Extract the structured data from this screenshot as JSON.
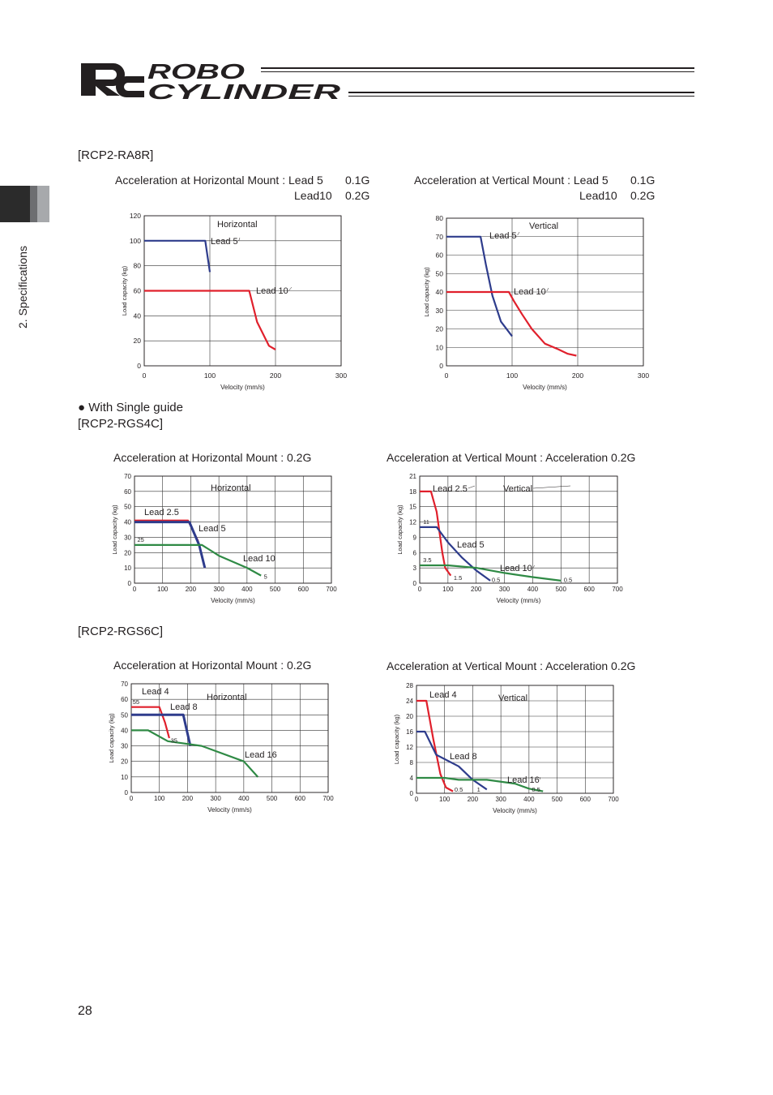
{
  "header": {
    "logo_mark": "RC",
    "logo_line1": "ROBO",
    "logo_line2": "CYLINDER"
  },
  "side_tab": {
    "label": "2. Specifications"
  },
  "sections": {
    "ra8r": "[RCP2-RA8R]",
    "single_guide": "● With Single guide",
    "rgs4c": "[RCP2-RGS4C]",
    "rgs6c": "[RCP2-RGS6C]"
  },
  "accel": {
    "ra8r_h_line1": "Acceleration at Horizontal Mount : Lead 5",
    "ra8r_h_line1_val": "0.1G",
    "ra8r_h_line2": "Lead10",
    "ra8r_h_line2_val": "0.2G",
    "ra8r_v_line1": "Acceleration at Vertical Mount : Lead 5",
    "ra8r_v_line1_val": "0.1G",
    "ra8r_v_line2": "Lead10",
    "ra8r_v_line2_val": "0.2G",
    "rgs4c_h": "Acceleration at Horizontal Mount : 0.2G",
    "rgs4c_v": "Acceleration at Vertical Mount : Acceleration 0.2G",
    "rgs6c_h": "Acceleration at Horizontal Mount : 0.2G",
    "rgs6c_v": "Acceleration at Vertical Mount : Acceleration 0.2G"
  },
  "page_number": "28",
  "colors": {
    "blue": "#2e3c8c",
    "red": "#e0202c",
    "green": "#2f8a45",
    "grid": "#333333"
  },
  "chart_data": [
    {
      "id": "ra8r-h",
      "type": "line",
      "title": "Horizontal",
      "xlabel": "Velocity (mm/s)",
      "ylabel": "Load capacity (kg)",
      "xlim": [
        0,
        300
      ],
      "ylim": [
        0,
        120
      ],
      "xticks": [
        0,
        100,
        200,
        300
      ],
      "yticks": [
        0,
        20,
        40,
        60,
        80,
        100,
        120
      ],
      "series": [
        {
          "name": "Lead 5",
          "color": "blue",
          "points": [
            [
              0,
              100
            ],
            [
              93,
              100
            ],
            [
              100,
              75
            ]
          ]
        },
        {
          "name": "Lead 10",
          "color": "red",
          "points": [
            [
              0,
              60
            ],
            [
              160,
              60
            ],
            [
              172,
              35
            ],
            [
              190,
              16
            ],
            [
              200,
              13
            ]
          ]
        }
      ],
      "annotations": []
    },
    {
      "id": "ra8r-v",
      "type": "line",
      "title": "Vertical",
      "xlabel": "Velocity (mm/s)",
      "ylabel": "Load capacity (kg)",
      "xlim": [
        0,
        300
      ],
      "ylim": [
        0,
        80
      ],
      "xticks": [
        0,
        100,
        200,
        300
      ],
      "yticks": [
        0,
        10,
        20,
        30,
        40,
        50,
        60,
        70,
        80
      ],
      "series": [
        {
          "name": "Lead 5",
          "color": "blue",
          "points": [
            [
              0,
              70
            ],
            [
              52,
              70
            ],
            [
              60,
              55
            ],
            [
              70,
              38
            ],
            [
              83,
              24
            ],
            [
              100,
              16
            ]
          ]
        },
        {
          "name": "Lead 10",
          "color": "red",
          "points": [
            [
              0,
              40
            ],
            [
              95,
              40
            ],
            [
              103,
              35
            ],
            [
              115,
              28
            ],
            [
              130,
              20
            ],
            [
              150,
              12
            ],
            [
              170,
              9
            ],
            [
              185,
              6.5
            ],
            [
              198,
              5.5
            ]
          ]
        }
      ],
      "annotations": []
    },
    {
      "id": "rgs4c-h",
      "type": "line",
      "title": "Horizontal",
      "xlabel": "Velocity (mm/s)",
      "ylabel": "Load capacity (kg)",
      "xlim": [
        0,
        700
      ],
      "ylim": [
        0,
        70
      ],
      "xticks": [
        0,
        100,
        200,
        300,
        400,
        500,
        600,
        700
      ],
      "yticks": [
        0,
        10,
        20,
        30,
        40,
        50,
        60,
        70
      ],
      "series": [
        {
          "name": "Lead 2.5",
          "color": "red",
          "points": [
            [
              0,
              41
            ],
            [
              190,
              41
            ],
            [
              225,
              28
            ],
            [
              250,
              10
            ]
          ]
        },
        {
          "name": "Lead 5",
          "color": "blue",
          "points": [
            [
              0,
              40
            ],
            [
              195,
              40
            ],
            [
              230,
              25
            ],
            [
              250,
              10
            ]
          ]
        },
        {
          "name": "Lead 10",
          "color": "green",
          "points": [
            [
              0,
              25
            ],
            [
              240,
              25
            ],
            [
              300,
              18
            ],
            [
              400,
              10
            ],
            [
              450,
              5
            ]
          ]
        }
      ],
      "annotations": [
        {
          "text": "25",
          "x": 10,
          "y": 27
        },
        {
          "text": "5",
          "x": 460,
          "y": 3
        }
      ]
    },
    {
      "id": "rgs4c-v",
      "type": "line",
      "title": "Vertical",
      "xlabel": "Velocity (mm/s)",
      "ylabel": "Load capacity (kg)",
      "xlim": [
        0,
        700
      ],
      "ylim": [
        0,
        21
      ],
      "xticks": [
        0,
        100,
        200,
        300,
        400,
        500,
        600,
        700
      ],
      "yticks": [
        0,
        3,
        6,
        9,
        12,
        15,
        18,
        21
      ],
      "series": [
        {
          "name": "Lead 2.5",
          "color": "red",
          "points": [
            [
              0,
              18
            ],
            [
              40,
              18
            ],
            [
              60,
              14
            ],
            [
              80,
              6
            ],
            [
              90,
              3
            ],
            [
              110,
              1.5
            ]
          ]
        },
        {
          "name": "Lead 5",
          "color": "blue",
          "points": [
            [
              0,
              11
            ],
            [
              60,
              11
            ],
            [
              100,
              8
            ],
            [
              150,
              5
            ],
            [
              200,
              2.5
            ],
            [
              250,
              0.5
            ]
          ]
        },
        {
          "name": "Lead 10",
          "color": "green",
          "points": [
            [
              0,
              3.5
            ],
            [
              100,
              3.5
            ],
            [
              200,
              3
            ],
            [
              300,
              2
            ],
            [
              400,
              1.2
            ],
            [
              500,
              0.5
            ]
          ]
        }
      ],
      "annotations": [
        {
          "text": "11",
          "x": 12,
          "y": 11.6
        },
        {
          "text": "3.5",
          "x": 12,
          "y": 4.1
        },
        {
          "text": "1.5",
          "x": 120,
          "y": 0.6
        },
        {
          "text": "0.5",
          "x": 255,
          "y": 0.2
        },
        {
          "text": "0.5",
          "x": 510,
          "y": 0.2
        }
      ]
    },
    {
      "id": "rgs6c-h",
      "type": "line",
      "title": "Horizontal",
      "xlabel": "Velocity (mm/s)",
      "ylabel": "Load capacity (kg)",
      "xlim": [
        0,
        700
      ],
      "ylim": [
        0,
        70
      ],
      "xticks": [
        0,
        100,
        200,
        300,
        400,
        500,
        600,
        700
      ],
      "yticks": [
        0,
        10,
        20,
        30,
        40,
        50,
        60,
        70
      ],
      "series": [
        {
          "name": "Lead 4",
          "color": "red",
          "points": [
            [
              0,
              55
            ],
            [
              100,
              55
            ],
            [
              120,
              45
            ],
            [
              135,
              35
            ]
          ]
        },
        {
          "name": "Lead 8",
          "color": "blue",
          "points": [
            [
              0,
              50
            ],
            [
              185,
              50
            ],
            [
              200,
              38
            ],
            [
              210,
              30
            ]
          ]
        },
        {
          "name": "Lead 16",
          "color": "green",
          "points": [
            [
              0,
              40
            ],
            [
              60,
              40
            ],
            [
              130,
              33
            ],
            [
              250,
              30
            ],
            [
              400,
              20
            ],
            [
              450,
              10
            ]
          ]
        }
      ],
      "annotations": [
        {
          "text": "55",
          "x": 5,
          "y": 57
        },
        {
          "text": "35",
          "x": 140,
          "y": 32
        }
      ]
    },
    {
      "id": "rgs6c-v",
      "type": "line",
      "title": "Vertical",
      "xlabel": "Velocity (mm/s)",
      "ylabel": "Load capacity (kg)",
      "xlim": [
        0,
        700
      ],
      "ylim": [
        0,
        28
      ],
      "xticks": [
        0,
        100,
        200,
        300,
        400,
        500,
        600,
        700
      ],
      "yticks": [
        0,
        4,
        8,
        12,
        16,
        20,
        24,
        28
      ],
      "series": [
        {
          "name": "Lead 4",
          "color": "red",
          "points": [
            [
              0,
              24
            ],
            [
              35,
              24
            ],
            [
              60,
              14
            ],
            [
              85,
              5
            ],
            [
              105,
              1.5
            ],
            [
              130,
              0.5
            ]
          ]
        },
        {
          "name": "Lead 8",
          "color": "blue",
          "points": [
            [
              0,
              16
            ],
            [
              30,
              16
            ],
            [
              70,
              10
            ],
            [
              150,
              7
            ],
            [
              200,
              3.5
            ],
            [
              250,
              1
            ]
          ]
        },
        {
          "name": "Lead 16",
          "color": "green",
          "points": [
            [
              0,
              4
            ],
            [
              100,
              4
            ],
            [
              150,
              3.5
            ],
            [
              250,
              3.5
            ],
            [
              350,
              2.5
            ],
            [
              400,
              1.2
            ],
            [
              450,
              0.5
            ]
          ]
        }
      ],
      "annotations": [
        {
          "text": "0.5",
          "x": 135,
          "y": 0.4
        },
        {
          "text": "1",
          "x": 215,
          "y": 0.4
        },
        {
          "text": "0.5",
          "x": 410,
          "y": 0.4
        }
      ]
    }
  ]
}
